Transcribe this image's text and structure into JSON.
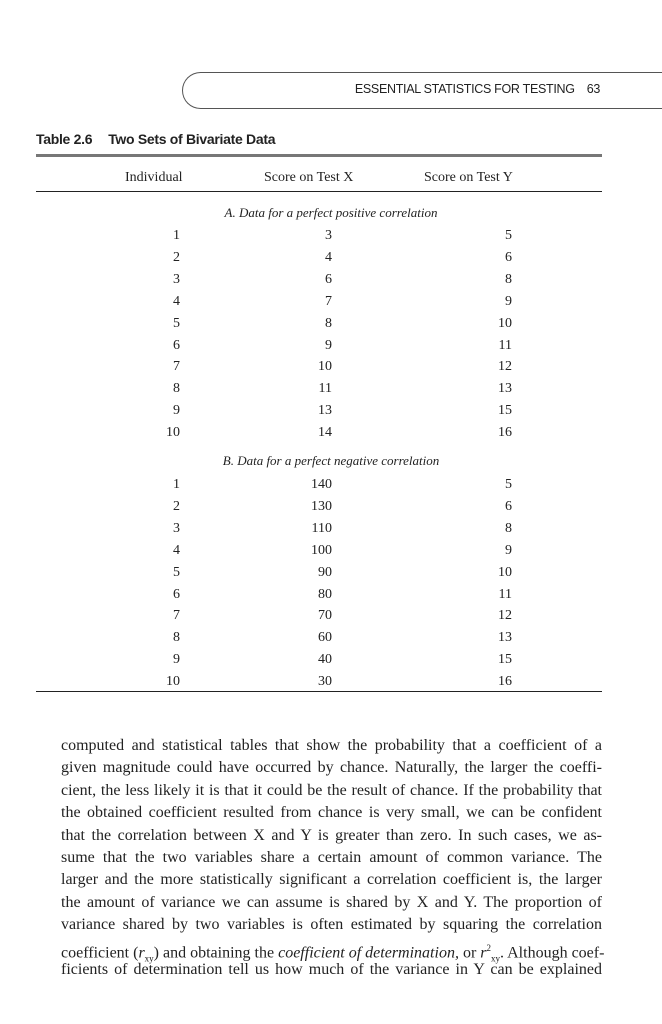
{
  "header": {
    "running_title": "ESSENTIAL STATISTICS FOR TESTING",
    "page_number": "63"
  },
  "table": {
    "number": "Table 2.6",
    "title": "Two Sets of Bivariate Data",
    "columns": [
      "Individual",
      "Score on Test X",
      "Score on Test Y"
    ],
    "sections": [
      {
        "caption": "A. Data for a perfect positive correlation",
        "rows": [
          [
            "1",
            "3",
            "5"
          ],
          [
            "2",
            "4",
            "6"
          ],
          [
            "3",
            "6",
            "8"
          ],
          [
            "4",
            "7",
            "9"
          ],
          [
            "5",
            "8",
            "10"
          ],
          [
            "6",
            "9",
            "11"
          ],
          [
            "7",
            "10",
            "12"
          ],
          [
            "8",
            "11",
            "13"
          ],
          [
            "9",
            "13",
            "15"
          ],
          [
            "10",
            "14",
            "16"
          ]
        ]
      },
      {
        "caption": "B. Data for a perfect negative correlation",
        "rows": [
          [
            "1",
            "140",
            "5"
          ],
          [
            "2",
            "130",
            "6"
          ],
          [
            "3",
            "110",
            "8"
          ],
          [
            "4",
            "100",
            "9"
          ],
          [
            "5",
            "90",
            "10"
          ],
          [
            "6",
            "80",
            "11"
          ],
          [
            "7",
            "70",
            "12"
          ],
          [
            "8",
            "60",
            "13"
          ],
          [
            "9",
            "40",
            "15"
          ],
          [
            "10",
            "30",
            "16"
          ]
        ]
      }
    ]
  },
  "body": {
    "lines": [
      "computed and statistical tables that show the probability that a coefficient of a",
      "given magnitude could have occurred by chance. Naturally, the larger the coeffi-",
      "cient, the less likely it is that it could be the result of chance. If the probability that",
      "the obtained coefficient resulted from chance is very small, we can be confident",
      "that the correlation between X and Y is greater than zero. In such cases, we as-",
      "sume that the two variables share a certain amount of common variance. The",
      "larger and the more statistically significant a correlation coefficient is, the larger",
      "the amount of variance we can assume is shared by X and Y. The proportion of",
      "variance shared by two variables is often estimated by squaring the correlation"
    ],
    "line10": {
      "a": "coefficient (",
      "r1": "r",
      "sub1": "xy",
      "b": ") and obtaining the",
      "term": "coefficient of determination,",
      "c": "or",
      "r2": "r",
      "sup2": "2",
      "sub2": "xy",
      "d": ". Although coef-"
    },
    "line11": "ficients of determination tell us how much of the variance in Y can be explained"
  }
}
